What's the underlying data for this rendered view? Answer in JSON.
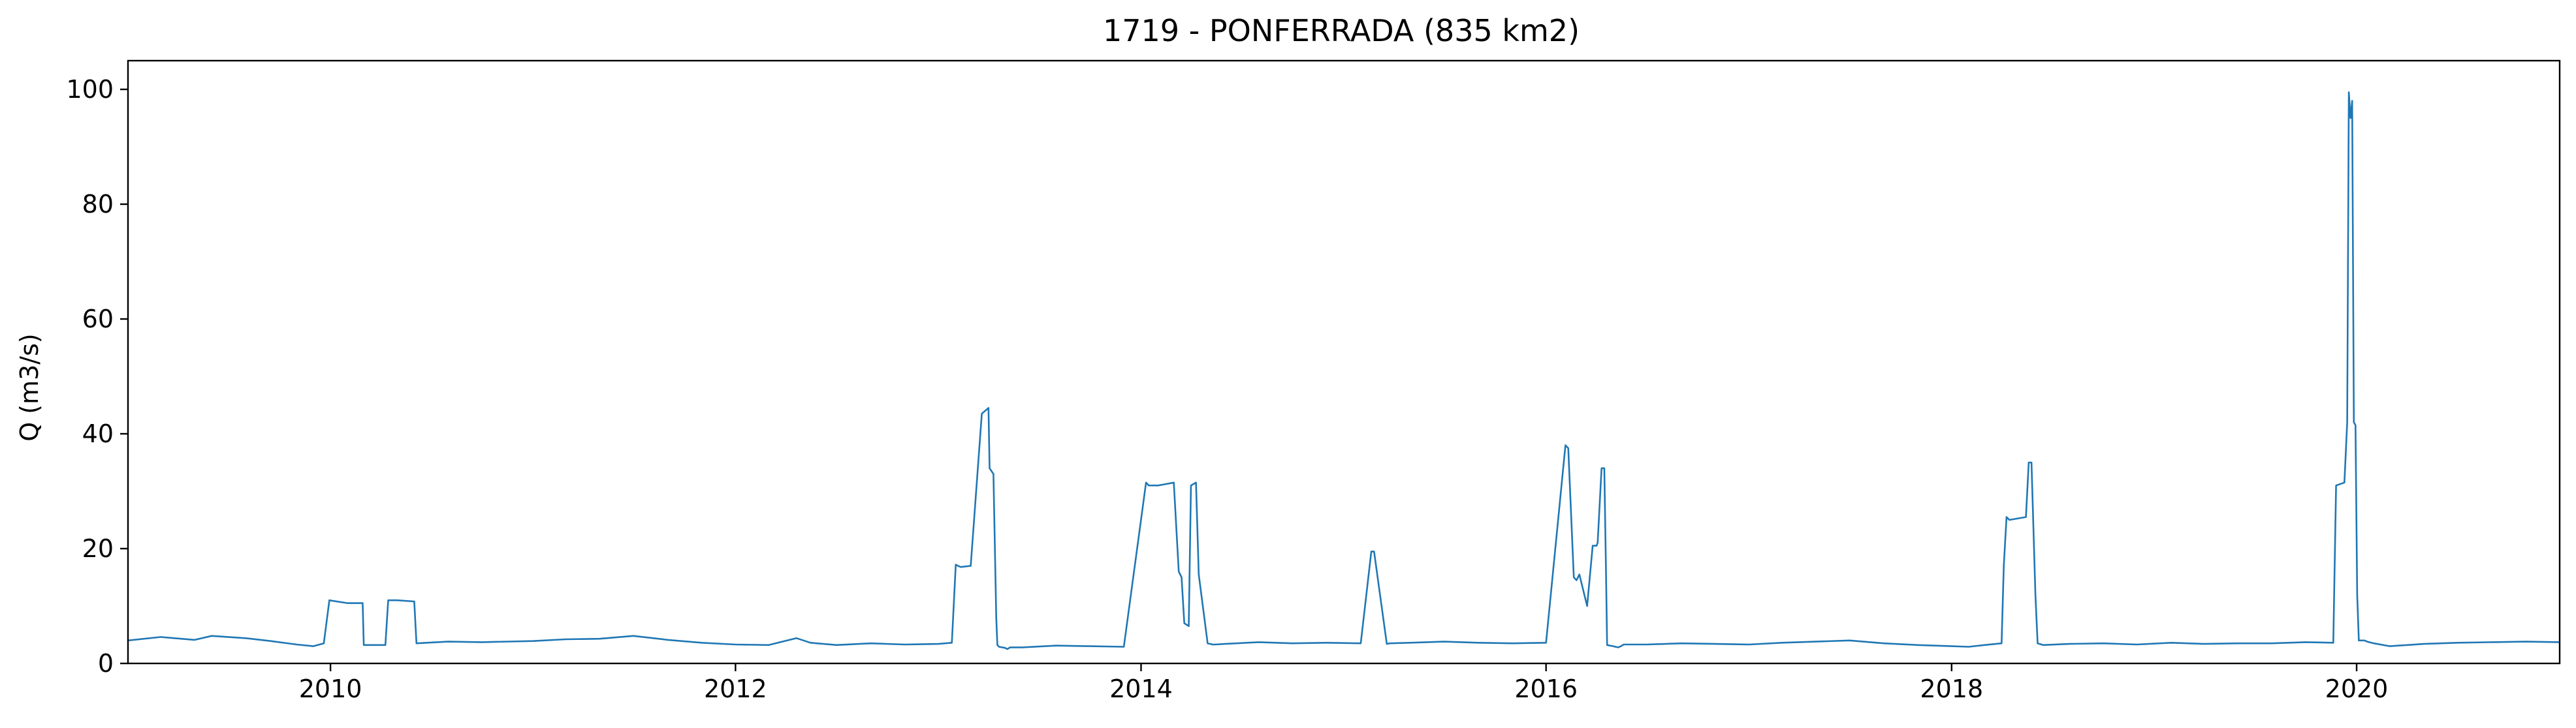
{
  "chart_data": {
    "type": "line",
    "title": "1719 - PONFERRADA (835 km2)",
    "xlabel": "",
    "ylabel": "Q (m3/s)",
    "xlim": [
      "2009-01-01",
      "2021-01-01"
    ],
    "ylim": [
      0,
      105
    ],
    "x_ticks": [
      "2010",
      "2012",
      "2014",
      "2016",
      "2018",
      "2020"
    ],
    "y_ticks": [
      "0",
      "20",
      "40",
      "60",
      "80",
      "100"
    ],
    "grid": false,
    "legend": "none",
    "colors": {
      "line": "#1f77b4",
      "axes": "#000000",
      "background": "#ffffff"
    },
    "series": [
      {
        "x": [
          "2009-01-01",
          "2009-03-01",
          "2009-05-01",
          "2009-06-01",
          "2009-08-01",
          "2009-09-15",
          "2009-11-01",
          "2009-12-01",
          "2009-12-20",
          "2009-12-30",
          "2010-02-01",
          "2010-02-28",
          "2010-03-02",
          "2010-04-10",
          "2010-04-15",
          "2010-05-01",
          "2010-06-01",
          "2010-06-05",
          "2010-08-01",
          "2010-10-01",
          "2011-01-01",
          "2011-03-01",
          "2011-05-01",
          "2011-07-01",
          "2011-09-01",
          "2011-11-01",
          "2012-01-01",
          "2012-03-01",
          "2012-04-20",
          "2012-05-15",
          "2012-07-01",
          "2012-09-01",
          "2012-11-01",
          "2013-01-01",
          "2013-01-25",
          "2013-02-01",
          "2013-02-05",
          "2013-02-10",
          "2013-02-28",
          "2013-03-20",
          "2013-04-01",
          "2013-04-03",
          "2013-04-10",
          "2013-04-15",
          "2013-04-17",
          "2013-04-20",
          "2013-05-01",
          "2013-05-05",
          "2013-05-10",
          "2013-06-01",
          "2013-08-01",
          "2013-10-01",
          "2013-12-01",
          "2014-01-10",
          "2014-01-15",
          "2014-02-01",
          "2014-03-01",
          "2014-03-10",
          "2014-03-15",
          "2014-03-20",
          "2014-03-28",
          "2014-04-01",
          "2014-04-10",
          "2014-04-15",
          "2014-04-25",
          "2014-05-01",
          "2014-05-10",
          "2014-05-15",
          "2014-06-01",
          "2014-08-01",
          "2014-10-01",
          "2014-12-01",
          "2015-02-01",
          "2015-02-20",
          "2015-02-25",
          "2015-03-20",
          "2015-03-25",
          "2015-05-01",
          "2015-07-01",
          "2015-09-01",
          "2015-11-01",
          "2016-01-01",
          "2016-02-05",
          "2016-02-10",
          "2016-02-20",
          "2016-02-25",
          "2016-03-01",
          "2016-03-15",
          "2016-03-25",
          "2016-04-01",
          "2016-04-03",
          "2016-04-10",
          "2016-04-15",
          "2016-04-18",
          "2016-04-20",
          "2016-05-01",
          "2016-05-05",
          "2016-05-10",
          "2016-05-15",
          "2016-05-20",
          "2016-07-01",
          "2016-09-01",
          "2016-11-01",
          "2017-01-01",
          "2017-03-01",
          "2017-05-01",
          "2017-07-01",
          "2017-09-01",
          "2017-11-01",
          "2018-01-01",
          "2018-02-01",
          "2018-03-01",
          "2018-04-01",
          "2018-04-05",
          "2018-04-10",
          "2018-04-15",
          "2018-05-15",
          "2018-05-20",
          "2018-05-25",
          "2018-06-01",
          "2018-06-05",
          "2018-06-15",
          "2018-08-01",
          "2018-10-01",
          "2018-12-01",
          "2019-02-01",
          "2019-04-01",
          "2019-06-01",
          "2019-08-01",
          "2019-10-01",
          "2019-11-20",
          "2019-11-25",
          "2019-12-10",
          "2019-12-15",
          "2019-12-18",
          "2019-12-21",
          "2019-12-24",
          "2019-12-27",
          "2019-12-30",
          "2020-01-02",
          "2020-01-05",
          "2020-01-10",
          "2020-01-15",
          "2020-01-20",
          "2020-02-01",
          "2020-03-01",
          "2020-05-01",
          "2020-07-01",
          "2020-09-01",
          "2020-11-01",
          "2021-01-01"
        ],
        "values": [
          4.0,
          4.6,
          4.1,
          4.8,
          4.4,
          3.9,
          3.3,
          3.0,
          3.5,
          11.0,
          10.5,
          10.5,
          3.2,
          3.2,
          11.0,
          11.0,
          10.8,
          3.5,
          3.8,
          3.7,
          3.9,
          4.2,
          4.3,
          4.8,
          4.1,
          3.6,
          3.3,
          3.2,
          4.4,
          3.6,
          3.2,
          3.5,
          3.3,
          3.4,
          3.6,
          17.2,
          17.0,
          16.8,
          17.0,
          43.5,
          44.5,
          34.0,
          33.0,
          8.0,
          3.2,
          2.9,
          2.7,
          2.5,
          2.8,
          2.8,
          3.1,
          3.0,
          2.9,
          31.5,
          31.0,
          31.0,
          31.5,
          16.0,
          15.0,
          7.0,
          6.5,
          31.0,
          31.5,
          15.5,
          8.0,
          3.5,
          3.3,
          3.3,
          3.4,
          3.7,
          3.5,
          3.6,
          3.5,
          19.5,
          19.5,
          3.4,
          3.5,
          3.6,
          3.8,
          3.6,
          3.5,
          3.6,
          38.0,
          37.5,
          15.0,
          14.5,
          15.5,
          10.0,
          20.5,
          20.5,
          21.0,
          34.0,
          34.0,
          16.0,
          3.2,
          3.0,
          2.9,
          2.8,
          3.0,
          3.3,
          3.3,
          3.5,
          3.4,
          3.3,
          3.6,
          3.8,
          4.0,
          3.5,
          3.2,
          3.0,
          2.9,
          3.2,
          3.5,
          17.0,
          25.5,
          25.0,
          25.5,
          35.0,
          35.0,
          12.0,
          3.5,
          3.2,
          3.4,
          3.5,
          3.3,
          3.6,
          3.4,
          3.5,
          3.5,
          3.7,
          3.6,
          31.0,
          31.5,
          42.0,
          99.5,
          95.0,
          98.0,
          42.0,
          41.5,
          12.0,
          4.0,
          4.0,
          4.0,
          3.8,
          3.5,
          3.0,
          3.4,
          3.6,
          3.7,
          3.8,
          3.7
        ]
      }
    ]
  }
}
